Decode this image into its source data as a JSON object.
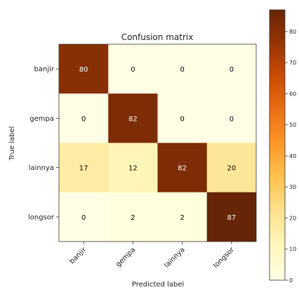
{
  "chart_data": {
    "type": "heatmap",
    "title": "Confusion matrix",
    "xlabel": "Predicted label",
    "ylabel": "True label",
    "x_categories": [
      "banjir",
      "gempa",
      "lainnya",
      "longsor"
    ],
    "y_categories": [
      "banjir",
      "gempa",
      "lainnya",
      "longsor"
    ],
    "values": [
      [
        80,
        0,
        0,
        0
      ],
      [
        0,
        82,
        0,
        0
      ],
      [
        17,
        12,
        82,
        20
      ],
      [
        0,
        2,
        2,
        87
      ]
    ],
    "colormap": "YlOrBr",
    "color_range": [
      0,
      87
    ],
    "colorbar_ticks": [
      0,
      10,
      20,
      30,
      40,
      50,
      60,
      70,
      80
    ],
    "grid": false,
    "cell_text_threshold": 43.5,
    "cell_text_dark": "#000000",
    "cell_text_light": "#ffffff"
  }
}
